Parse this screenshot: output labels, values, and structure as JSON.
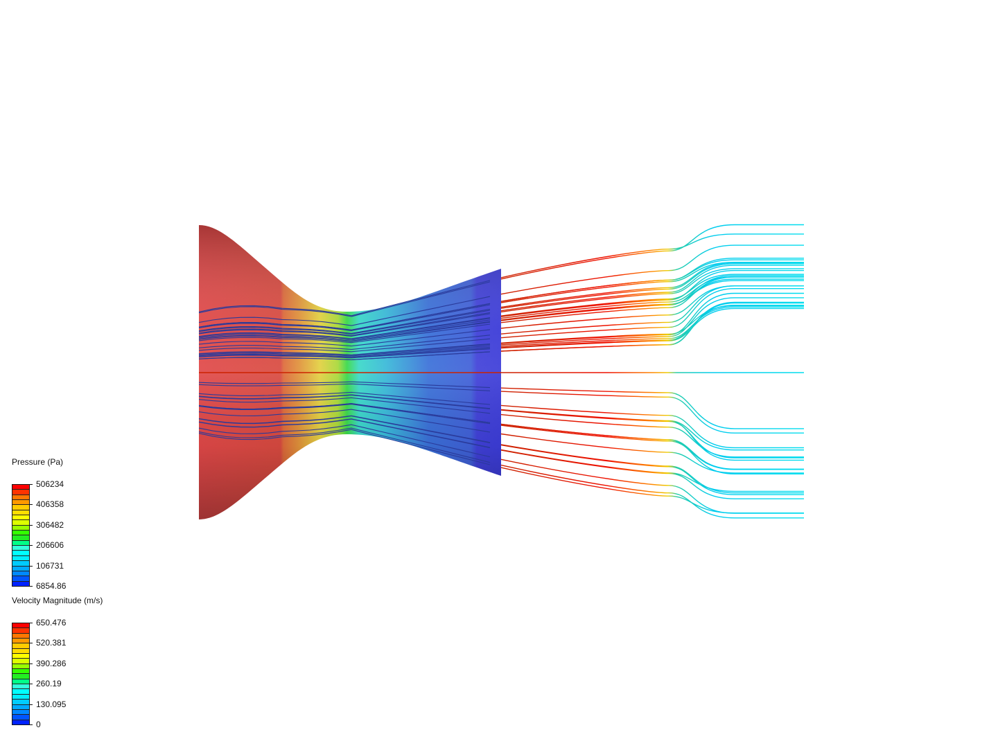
{
  "legends": [
    {
      "title": "Pressure (Pa)",
      "labels": [
        "506234",
        "406358",
        "306482",
        "206606",
        "106731",
        "6854.86"
      ],
      "range": [
        6854.86,
        506234
      ]
    },
    {
      "title": "Velocity Magnitude (m/s)",
      "labels": [
        "650.476",
        "520.381",
        "390.286",
        "260.19",
        "130.095",
        "0"
      ],
      "range": [
        0,
        650.476
      ]
    }
  ],
  "colormap": [
    "#ff0000",
    "#ff3300",
    "#ff7700",
    "#ff9900",
    "#ffcc00",
    "#ffdd00",
    "#ffff00",
    "#ddff00",
    "#99ff00",
    "#33ff00",
    "#22ee22",
    "#00ff88",
    "#33ffdd",
    "#00ffff",
    "#00eeff",
    "#00ccff",
    "#00aaff",
    "#0088ff",
    "#0055ff",
    "#0022ff"
  ]
}
